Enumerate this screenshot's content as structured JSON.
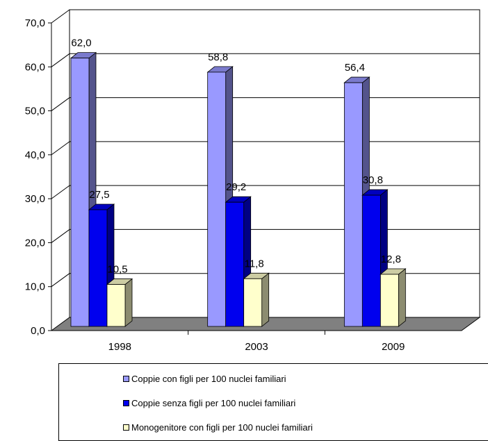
{
  "chart_data": {
    "type": "bar",
    "categories": [
      "1998",
      "2003",
      "2009"
    ],
    "series": [
      {
        "name": "Coppie con figli per 100 nuclei familiari",
        "values": [
          62.0,
          58.8,
          56.4
        ],
        "value_labels": [
          "62,0",
          "58,8",
          "56,4"
        ],
        "color": "#9999ff"
      },
      {
        "name": "Coppie senza figli per 100 nuclei familiari",
        "values": [
          27.5,
          29.2,
          30.8
        ],
        "value_labels": [
          "27,5",
          "29,2",
          "30,8"
        ],
        "color": "#0000ee"
      },
      {
        "name": "Monogenitore con figli per 100 nuclei familiari",
        "values": [
          10.5,
          11.8,
          12.8
        ],
        "value_labels": [
          "10,5",
          "11,8",
          "12,8"
        ],
        "color": "#ffffcc"
      }
    ],
    "y_ticks": [
      "0,0",
      "10,0",
      "20,0",
      "30,0",
      "40,0",
      "50,0",
      "60,0",
      "70,0"
    ],
    "ylim": [
      0,
      70
    ],
    "grid": true,
    "legend_position": "bottom"
  }
}
